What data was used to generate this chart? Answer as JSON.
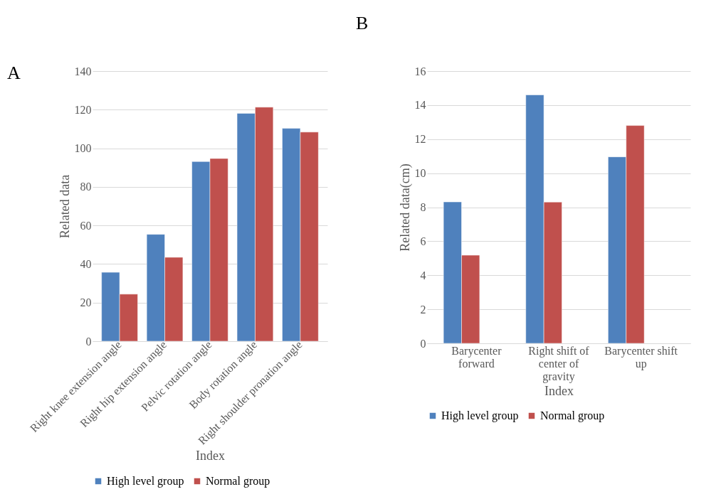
{
  "chart_data": [
    {
      "type": "bar",
      "annotations": [
        "A"
      ],
      "xlabel": "Index",
      "ylabel": "Related data",
      "categories": [
        "Right knee extension angle",
        "Right hip extension angle",
        "Pelvic rotation angle",
        "Body rotation angle",
        "Right shoulder pronation angle"
      ],
      "series": [
        {
          "name": "High level group",
          "color": "#4f81bd",
          "values": [
            35.7,
            55.4,
            93.1,
            118.1,
            110.3
          ]
        },
        {
          "name": "Normal group",
          "color": "#c0504d",
          "values": [
            24.4,
            43.5,
            94.7,
            121.3,
            108.4
          ]
        }
      ],
      "ylim": [
        0,
        140
      ],
      "yticks": [
        0,
        20,
        40,
        60,
        80,
        100,
        120,
        140
      ],
      "grid": "y",
      "legend": "bottom"
    },
    {
      "type": "bar",
      "annotations": [
        "B"
      ],
      "xlabel": "Index",
      "ylabel": "Related data(cm)",
      "categories": [
        "Barycenter forward",
        "Right shift of center of gravity",
        "Barycenter shift up"
      ],
      "series": [
        {
          "name": "High level group",
          "color": "#4f81bd",
          "values": [
            8.31,
            14.6,
            10.96
          ]
        },
        {
          "name": "Normal group",
          "color": "#c0504d",
          "values": [
            5.18,
            8.3,
            12.8
          ]
        }
      ],
      "ylim": [
        0,
        16
      ],
      "yticks": [
        0,
        2,
        4,
        6,
        8,
        10,
        12,
        14,
        16
      ],
      "grid": "y",
      "legend": "bottom"
    }
  ]
}
